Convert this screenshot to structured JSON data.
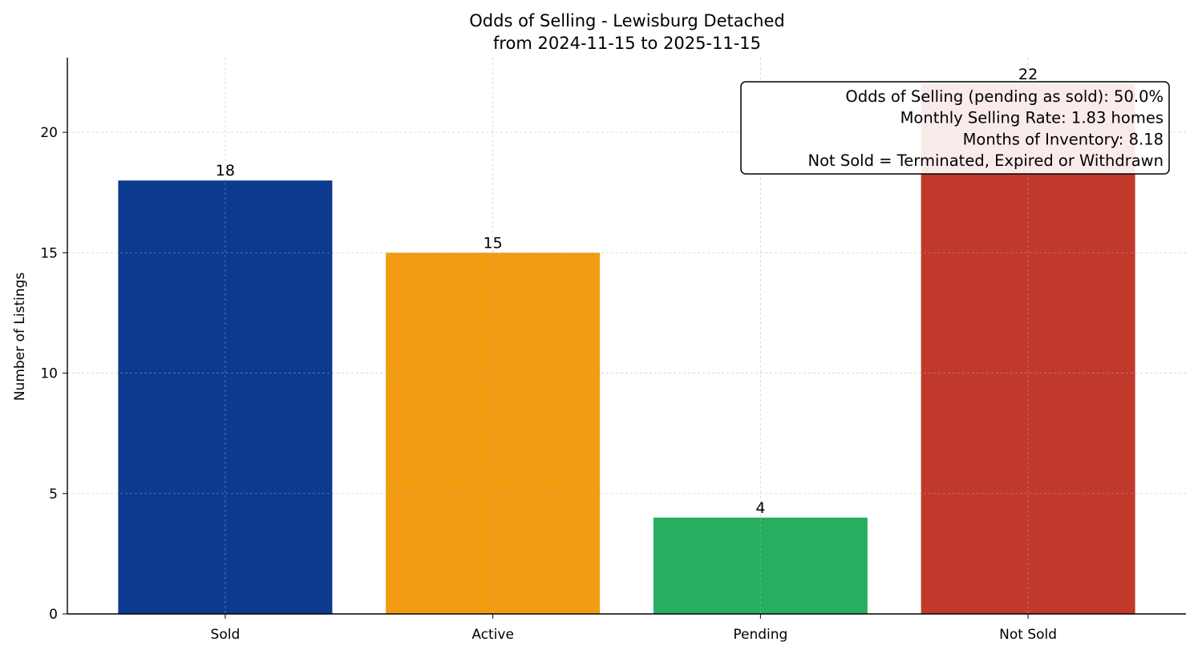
{
  "chart_data": {
    "type": "bar",
    "title": "Odds of Selling - Lewisburg Detached",
    "subtitle": "from 2024-11-15 to 2025-11-15",
    "xlabel": "",
    "ylabel": "Number of Listings",
    "categories": [
      "Sold",
      "Active",
      "Pending",
      "Not Sold"
    ],
    "values": [
      18,
      15,
      4,
      22
    ],
    "data_labels": [
      "18",
      "15",
      "4",
      "22"
    ],
    "colors": [
      "#0b3a8e",
      "#f39c12",
      "#27ae60",
      "#c0392b"
    ],
    "ylim": [
      0,
      23.1
    ],
    "yticks": [
      0,
      5,
      10,
      15,
      20
    ],
    "grid": true,
    "annotation": {
      "lines": [
        "Odds of Selling (pending as sold): 50.0%",
        "Monthly Selling Rate: 1.83 homes",
        "Months of Inventory: 8.18",
        "Not Sold = Terminated, Expired or Withdrawn"
      ],
      "placement": "top-right"
    }
  }
}
